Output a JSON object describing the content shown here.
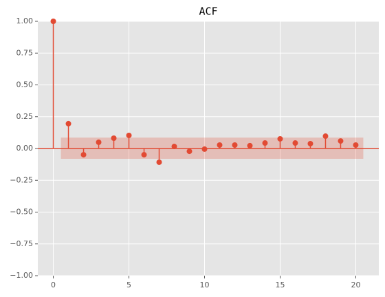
{
  "chart_data": {
    "type": "stem",
    "title": "ACF",
    "x": [
      0,
      1,
      2,
      3,
      4,
      5,
      6,
      7,
      8,
      9,
      10,
      11,
      12,
      13,
      14,
      15,
      16,
      17,
      18,
      19,
      20
    ],
    "values": [
      1.0,
      0.195,
      -0.049,
      0.049,
      0.081,
      0.103,
      -0.049,
      -0.108,
      0.016,
      -0.022,
      -0.005,
      0.027,
      0.027,
      0.022,
      0.043,
      0.076,
      0.043,
      0.038,
      0.097,
      0.059,
      0.027
    ],
    "color": "#e24a33",
    "confidence_band": {
      "x": [
        0.5,
        20.5
      ],
      "upper": 0.086,
      "lower": -0.081,
      "color": "#e24a33"
    },
    "xlim": [
      -1.025,
      21.525
    ],
    "ylim": [
      -1,
      1
    ],
    "xticks": [
      0,
      5,
      10,
      15,
      20
    ],
    "yticks": [
      {
        "value": -1,
        "label": "−1.00"
      },
      {
        "value": -0.75,
        "label": "−0.75"
      },
      {
        "value": -0.5,
        "label": "−0.50"
      },
      {
        "value": -0.25,
        "label": "−0.25"
      },
      {
        "value": 0,
        "label": "0.00"
      },
      {
        "value": 0.25,
        "label": "0.25"
      },
      {
        "value": 0.5,
        "label": "0.50"
      },
      {
        "value": 0.75,
        "label": "0.75"
      },
      {
        "value": 1,
        "label": "1.00"
      }
    ],
    "grid": true
  }
}
